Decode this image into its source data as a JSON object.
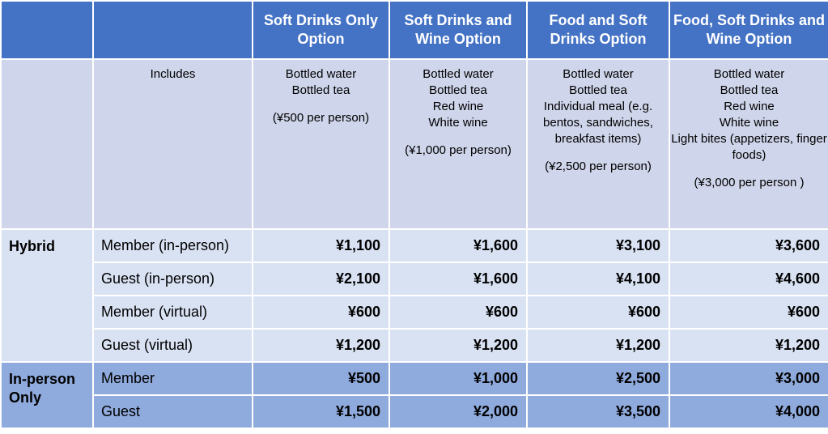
{
  "headers": [
    "",
    "",
    "Soft Drinks Only Option",
    "Soft Drinks and Wine Option",
    "Food and Soft Drinks Option",
    "Food, Soft Drinks and Wine Option"
  ],
  "includes": {
    "label": "Includes",
    "options": [
      {
        "items": "Bottled water\nBottled tea",
        "price_note": "(¥500 per person)"
      },
      {
        "items": "Bottled water\nBottled tea\nRed wine\nWhite wine",
        "price_note": "(¥1,000 per person)"
      },
      {
        "items": "Bottled water\nBottled tea\nIndividual meal (e.g. bentos, sandwiches, breakfast items)",
        "price_note": "(¥2,500 per person)"
      },
      {
        "items": "Bottled water\nBottled tea\nRed wine\nWhite wine\nLight bites (appetizers, finger foods)",
        "price_note": "(¥3,000 per person )"
      }
    ]
  },
  "groups": [
    {
      "name": "Hybrid",
      "rows": [
        {
          "label": "Member (in-person)",
          "prices": [
            "¥1,100",
            "¥1,600",
            "¥3,100",
            "¥3,600"
          ]
        },
        {
          "label": "Guest (in-person)",
          "prices": [
            "¥2,100",
            "¥1,600",
            "¥4,100",
            "¥4,600"
          ]
        },
        {
          "label": "Member (virtual)",
          "prices": [
            "¥600",
            "¥600",
            "¥600",
            "¥600"
          ]
        },
        {
          "label": "Guest (virtual)",
          "prices": [
            "¥1,200",
            "¥1,200",
            "¥1,200",
            "¥1,200"
          ]
        }
      ]
    },
    {
      "name": "In-person Only",
      "rows": [
        {
          "label": "Member",
          "prices": [
            "¥500",
            "¥1,000",
            "¥2,500",
            "¥3,000"
          ]
        },
        {
          "label": "Guest",
          "prices": [
            "¥1,500",
            "¥2,000",
            "¥3,500",
            "¥4,000"
          ]
        }
      ]
    }
  ],
  "colors": {
    "header_bg": "#4472c4",
    "includes_bg": "#cfd5ea",
    "hybrid_bg": "#d9e2f3",
    "inperson_bg": "#8faadc"
  }
}
